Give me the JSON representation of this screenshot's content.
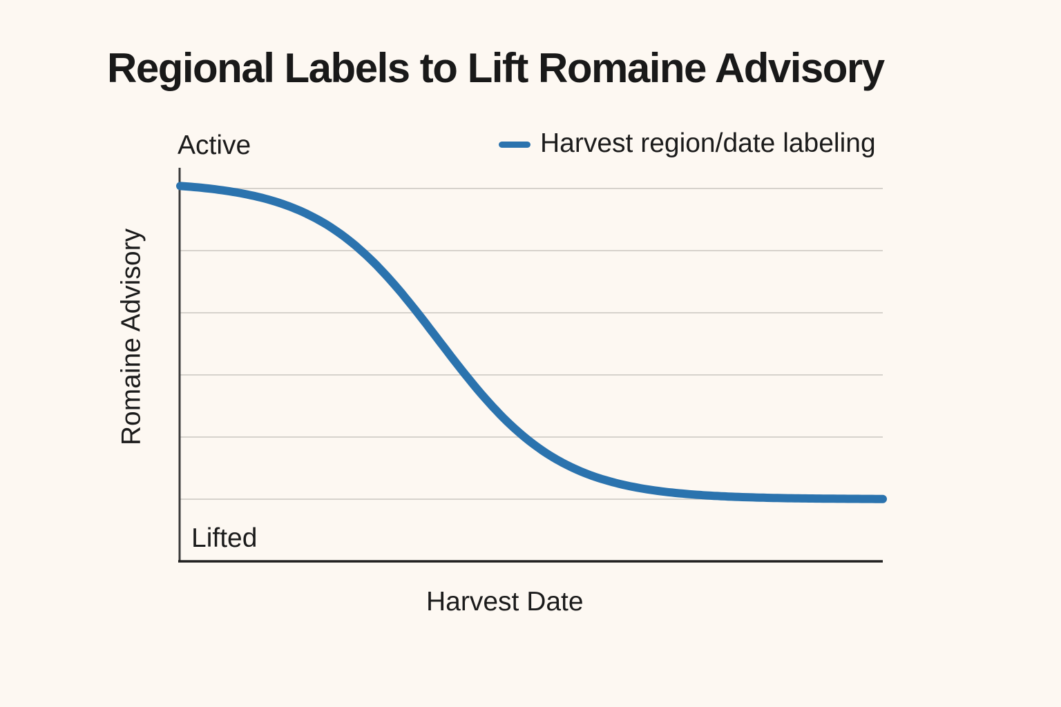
{
  "title": "Regional Labels to Lift Romaine Advisory",
  "legend": {
    "label": "Harvest region/date labeling"
  },
  "colors": {
    "background": "#FDF8F2",
    "accent_blue": "#2B73AE",
    "text": "#1B1B1B",
    "axis_dark": "#2E2E2E",
    "gridline": "#D6D2CC"
  },
  "chart_data": {
    "type": "line",
    "title": "Regional Labels to Lift Romaine Advisory",
    "xlabel": "Harvest Date",
    "ylabel": "Romaine Advisory",
    "y_axis_labels": {
      "top": "Active",
      "bottom": "Lifted"
    },
    "x_axis_ticks": [],
    "y_axis_ticks": [],
    "grid": "horizontal-only",
    "gridline_count": 6,
    "legend_position": "top-right",
    "xlim": [
      0,
      1
    ],
    "ylim": [
      0,
      1
    ],
    "series": [
      {
        "name": "Harvest region/date labeling",
        "color": "#2B73AE",
        "model": "logistic-decay",
        "curve": {
          "midpoint_x": 0.368,
          "steepness": 11.6,
          "start_value": 1.0,
          "end_value": 0.0
        },
        "points": [
          {
            "x": 0.0,
            "y": 0.99
          },
          {
            "x": 0.1,
            "y": 0.96
          },
          {
            "x": 0.18,
            "y": 0.9
          },
          {
            "x": 0.25,
            "y": 0.79
          },
          {
            "x": 0.33,
            "y": 0.6
          },
          {
            "x": 0.37,
            "y": 0.5
          },
          {
            "x": 0.41,
            "y": 0.39
          },
          {
            "x": 0.49,
            "y": 0.2
          },
          {
            "x": 0.63,
            "y": 0.05
          },
          {
            "x": 0.82,
            "y": 0.01
          },
          {
            "x": 1.0,
            "y": 0.0
          }
        ]
      }
    ]
  }
}
